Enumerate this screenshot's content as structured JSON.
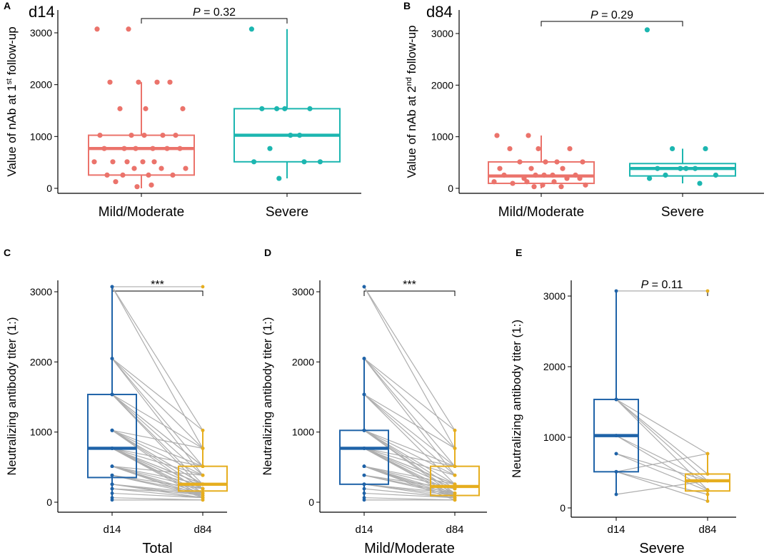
{
  "colors": {
    "mild": "#EB736B",
    "severe": "#1CB6B0",
    "d14": "#1F63A8",
    "d84": "#E6AE1F",
    "pair": "#AEAEAE",
    "axis": "#000000"
  },
  "chart_data": [
    {
      "panel": "A",
      "type": "box",
      "title": "d14",
      "ylabel": "Value of nAb at 1st follow-up",
      "ylabel_parts": [
        "Value of nAb at 1",
        "st",
        " follow-up"
      ],
      "ylim": [
        -30,
        3250
      ],
      "yticks": [
        0,
        1000,
        2000,
        3000
      ],
      "categories": [
        "Mild/Moderate",
        "Severe"
      ],
      "series": [
        {
          "name": "Mild/Moderate",
          "color_key": "mild",
          "box": {
            "q1": 256,
            "median": 768,
            "q3": 1024,
            "min": 0,
            "max": 2048
          },
          "points": [
            3072,
            3072,
            2048,
            2048,
            2048,
            2048,
            1536,
            1536,
            1536,
            1024,
            1024,
            1024,
            1024,
            1024,
            768,
            768,
            768,
            768,
            768,
            768,
            512,
            512,
            512,
            512,
            512,
            384,
            384,
            384,
            256,
            256,
            256,
            256,
            128,
            64,
            32
          ]
        },
        {
          "name": "Severe",
          "color_key": "severe",
          "box": {
            "q1": 512,
            "median": 1024,
            "q3": 1536,
            "min": 192,
            "max": 3072
          },
          "points": [
            3072,
            1536,
            1536,
            1536,
            1536,
            1024,
            1024,
            768,
            512,
            512,
            512,
            192
          ]
        }
      ],
      "comparison": {
        "prefix": "P",
        "text": " = 0.32"
      }
    },
    {
      "panel": "B",
      "type": "box",
      "title": "d84",
      "ylabel": "Value of nAb at 2nd follow-up",
      "ylabel_parts": [
        "Value of nAb at 2",
        "nd",
        " follow-up"
      ],
      "ylim": [
        -30,
        3250
      ],
      "yticks": [
        0,
        1000,
        2000,
        3000
      ],
      "categories": [
        "Mild/Moderate",
        "Severe"
      ],
      "series": [
        {
          "name": "Mild/Moderate",
          "color_key": "mild",
          "box": {
            "q1": 96,
            "median": 240,
            "q3": 512,
            "min": 0,
            "max": 1024
          },
          "points": [
            1024,
            1024,
            768,
            768,
            768,
            512,
            512,
            512,
            512,
            384,
            384,
            384,
            256,
            256,
            256,
            256,
            256,
            192,
            192,
            192,
            128,
            128,
            128,
            96,
            64,
            64,
            32,
            32
          ]
        },
        {
          "name": "Severe",
          "color_key": "severe",
          "box": {
            "q1": 240,
            "median": 384,
            "q3": 480,
            "min": 96,
            "max": 768
          },
          "points": [
            3072,
            768,
            768,
            384,
            384,
            384,
            384,
            256,
            256,
            192,
            96
          ]
        }
      ],
      "comparison": {
        "prefix": "P",
        "text": " = 0.29"
      }
    },
    {
      "panel": "C",
      "type": "paired-box",
      "xlabel": "Total",
      "ylabel": "Neutralizing antibody titer (1:)",
      "ylim": [
        -50,
        3250
      ],
      "yticks": [
        0,
        1000,
        2000,
        3000
      ],
      "categories": [
        "d14",
        "d84"
      ],
      "boxes": [
        {
          "name": "d14",
          "color_key": "d14",
          "q1": 352,
          "median": 768,
          "q3": 1536,
          "min": 32,
          "max": 3072
        },
        {
          "name": "d84",
          "color_key": "d84",
          "q1": 160,
          "median": 256,
          "q3": 512,
          "min": 32,
          "max": 1024
        }
      ],
      "pairs": [
        [
          3072,
          3072
        ],
        [
          3072,
          1024
        ],
        [
          3072,
          768
        ],
        [
          2048,
          1024
        ],
        [
          2048,
          768
        ],
        [
          2048,
          512
        ],
        [
          2048,
          384
        ],
        [
          1536,
          768
        ],
        [
          1536,
          512
        ],
        [
          1536,
          512
        ],
        [
          1536,
          256
        ],
        [
          1536,
          384
        ],
        [
          1536,
          192
        ],
        [
          1024,
          512
        ],
        [
          1024,
          256
        ],
        [
          1024,
          256
        ],
        [
          1024,
          384
        ],
        [
          1024,
          128
        ],
        [
          1024,
          192
        ],
        [
          768,
          384
        ],
        [
          768,
          256
        ],
        [
          768,
          192
        ],
        [
          768,
          128
        ],
        [
          768,
          96
        ],
        [
          768,
          256
        ],
        [
          768,
          64
        ],
        [
          768,
          192
        ],
        [
          512,
          256
        ],
        [
          512,
          128
        ],
        [
          512,
          96
        ],
        [
          512,
          192
        ],
        [
          512,
          64
        ],
        [
          384,
          128
        ],
        [
          384,
          192
        ],
        [
          384,
          96
        ],
        [
          256,
          64
        ],
        [
          256,
          128
        ],
        [
          256,
          96
        ],
        [
          192,
          128
        ],
        [
          192,
          64
        ],
        [
          128,
          64
        ],
        [
          64,
          32
        ],
        [
          32,
          32
        ],
        [
          768,
          512
        ],
        [
          1024,
          768
        ],
        [
          512,
          384
        ]
      ],
      "comparison": {
        "prefix": "",
        "text": "***"
      }
    },
    {
      "panel": "D",
      "type": "paired-box",
      "xlabel": "Mild/Moderate",
      "ylabel": "Neutralizing antibody titer (1:)",
      "ylim": [
        -50,
        3250
      ],
      "yticks": [
        0,
        1000,
        2000,
        3000
      ],
      "categories": [
        "d14",
        "d84"
      ],
      "boxes": [
        {
          "name": "d14",
          "color_key": "d14",
          "q1": 256,
          "median": 768,
          "q3": 1024,
          "min": 32,
          "max": 2048
        },
        {
          "name": "d84",
          "color_key": "d84",
          "q1": 96,
          "median": 224,
          "q3": 512,
          "min": 32,
          "max": 1024
        }
      ],
      "pairs": [
        [
          3072,
          768
        ],
        [
          3072,
          1024
        ],
        [
          2048,
          1024
        ],
        [
          2048,
          768
        ],
        [
          2048,
          512
        ],
        [
          2048,
          384
        ],
        [
          1536,
          512
        ],
        [
          1536,
          768
        ],
        [
          1536,
          256
        ],
        [
          1536,
          384
        ],
        [
          1024,
          512
        ],
        [
          1024,
          256
        ],
        [
          1024,
          384
        ],
        [
          1024,
          192
        ],
        [
          1024,
          128
        ],
        [
          768,
          384
        ],
        [
          768,
          256
        ],
        [
          768,
          192
        ],
        [
          768,
          128
        ],
        [
          768,
          96
        ],
        [
          768,
          64
        ],
        [
          768,
          256
        ],
        [
          512,
          256
        ],
        [
          512,
          128
        ],
        [
          512,
          96
        ],
        [
          512,
          192
        ],
        [
          512,
          64
        ],
        [
          384,
          128
        ],
        [
          384,
          192
        ],
        [
          384,
          96
        ],
        [
          256,
          64
        ],
        [
          256,
          128
        ],
        [
          256,
          96
        ],
        [
          192,
          64
        ],
        [
          128,
          64
        ],
        [
          64,
          32
        ],
        [
          32,
          32
        ],
        [
          1024,
          96
        ],
        [
          768,
          512
        ],
        [
          512,
          32
        ]
      ],
      "comparison": {
        "prefix": "",
        "text": "***"
      }
    },
    {
      "panel": "E",
      "type": "paired-box",
      "xlabel": "Severe",
      "ylabel": "Neutralizing antibody titer (1:)",
      "ylim": [
        -50,
        3250
      ],
      "yticks": [
        0,
        1000,
        2000,
        3000
      ],
      "categories": [
        "d14",
        "d84"
      ],
      "boxes": [
        {
          "name": "d14",
          "color_key": "d14",
          "q1": 512,
          "median": 1024,
          "q3": 1536,
          "min": 192,
          "max": 3072
        },
        {
          "name": "d84",
          "color_key": "d84",
          "q1": 240,
          "median": 384,
          "q3": 480,
          "min": 96,
          "max": 768
        },
        {
          "name": "d84-extreme",
          "color_key": "d84",
          "q1": 3072,
          "median": 3072,
          "q3": 3072,
          "min": 3072,
          "max": 3072
        }
      ],
      "pairs": [
        [
          3072,
          3072
        ],
        [
          1536,
          384
        ],
        [
          1536,
          768
        ],
        [
          1536,
          256
        ],
        [
          1536,
          480
        ],
        [
          1024,
          384
        ],
        [
          1024,
          256
        ],
        [
          768,
          384
        ],
        [
          768,
          240
        ],
        [
          512,
          192
        ],
        [
          512,
          96
        ],
        [
          512,
          768
        ],
        [
          192,
          384
        ]
      ],
      "comparison": {
        "prefix": "P",
        "text": " = 0.11"
      }
    }
  ]
}
